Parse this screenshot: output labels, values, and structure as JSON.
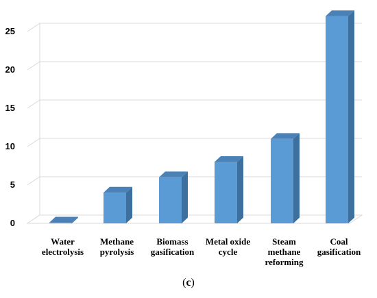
{
  "chart_data": {
    "type": "bar",
    "categories": [
      [
        "Water",
        "electrolysis"
      ],
      [
        "Methane",
        "pyrolysis"
      ],
      [
        "Biomass",
        "gasification"
      ],
      [
        "Metal oxide",
        "cycle"
      ],
      [
        "Steam",
        "methane",
        "reforming"
      ],
      [
        "Coal",
        "gasification"
      ]
    ],
    "values": [
      0.1,
      4,
      6,
      8,
      11,
      27
    ],
    "yticks": [
      0,
      5,
      10,
      15,
      20,
      25
    ],
    "ylim": [
      0,
      27
    ],
    "grid": true,
    "bar_color": "#5b9bd5",
    "bar_side_color": "#3d6f9f",
    "bar_top_color": "#4a82b8"
  },
  "caption": {
    "open": "(",
    "letter": "c",
    "close": ")"
  }
}
